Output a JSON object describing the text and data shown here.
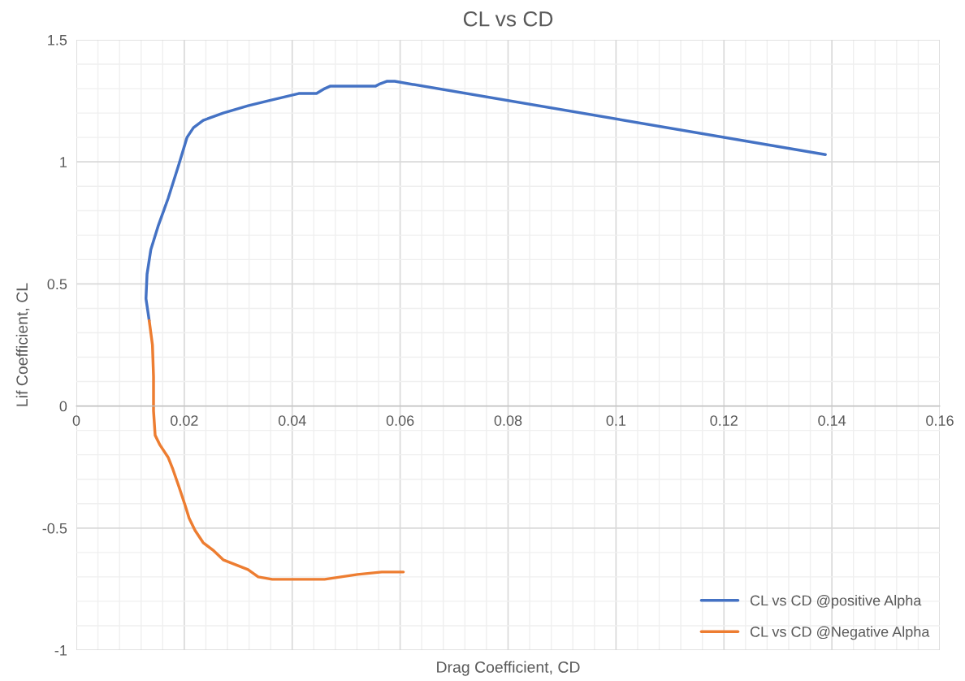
{
  "chart_data": {
    "type": "line",
    "title": "CL vs CD",
    "xlabel": "Drag Coefficient, CD",
    "ylabel": "Lif Coefficient, CL",
    "xlim": [
      0,
      0.16
    ],
    "xticks": [
      0,
      0.02,
      0.04,
      0.06,
      0.08,
      0.1,
      0.12,
      0.14,
      0.16
    ],
    "ylim": [
      -1,
      1.5
    ],
    "yticks": [
      -1,
      -0.5,
      0,
      0.5,
      1,
      1.5
    ],
    "grid": true,
    "legend": "bottom right",
    "marker": "none",
    "line_style": "solid",
    "series": [
      {
        "name": "CL vs CD @positive Alpha",
        "color": "#4472c4",
        "x": [
          0.0135,
          0.0129,
          0.0131,
          0.0138,
          0.0152,
          0.017,
          0.019,
          0.0205,
          0.0217,
          0.0235,
          0.0272,
          0.0318,
          0.0355,
          0.0393,
          0.0412,
          0.0445,
          0.046,
          0.047,
          0.0491,
          0.0554,
          0.0563,
          0.0575,
          0.059,
          0.1388
        ],
        "values": [
          0.35,
          0.44,
          0.54,
          0.64,
          0.74,
          0.85,
          0.99,
          1.1,
          1.14,
          1.17,
          1.2,
          1.23,
          1.25,
          1.27,
          1.28,
          1.28,
          1.3,
          1.31,
          1.31,
          1.31,
          1.32,
          1.33,
          1.33,
          1.03
        ]
      },
      {
        "name": "CL vs CD @Negative Alpha",
        "color": "#ed7d31",
        "x": [
          0.0135,
          0.0141,
          0.0143,
          0.0143,
          0.0146,
          0.0155,
          0.017,
          0.0179,
          0.019,
          0.0202,
          0.0209,
          0.022,
          0.0235,
          0.0253,
          0.0272,
          0.0295,
          0.0318,
          0.0337,
          0.0363,
          0.04,
          0.046,
          0.0521,
          0.0566,
          0.0606
        ],
        "values": [
          0.35,
          0.25,
          0.12,
          -0.02,
          -0.12,
          -0.16,
          -0.21,
          -0.26,
          -0.33,
          -0.41,
          -0.46,
          -0.51,
          -0.56,
          -0.59,
          -0.63,
          -0.65,
          -0.67,
          -0.7,
          -0.71,
          -0.71,
          -0.71,
          -0.69,
          -0.68,
          -0.68
        ]
      }
    ]
  }
}
